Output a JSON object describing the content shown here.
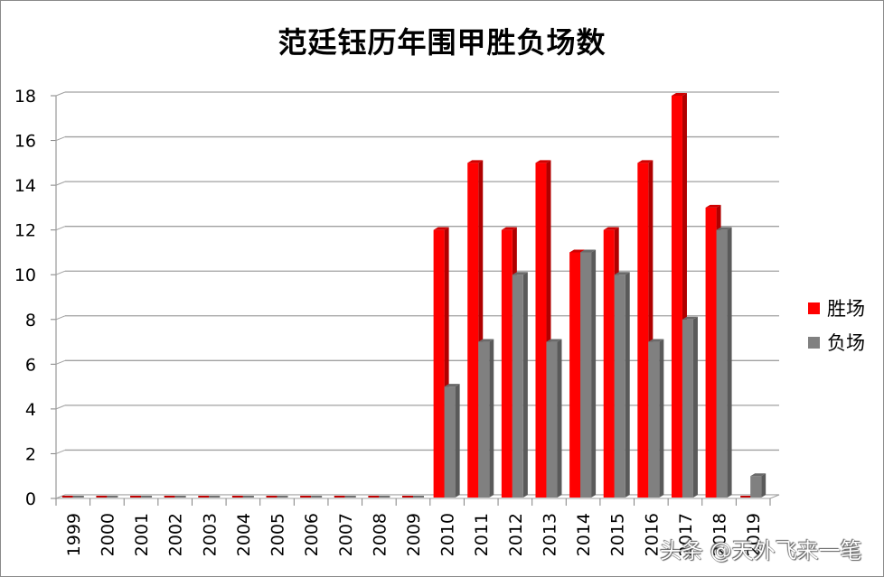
{
  "title": "范廷钰历年围甲胜负场数",
  "legend": [
    {
      "label": "胜场",
      "color": "#ff0000"
    },
    {
      "label": "负场",
      "color": "#808080"
    }
  ],
  "watermark": "头条 @天外飞来一笔",
  "chart_data": {
    "type": "bar",
    "style": "3d-clustered-column",
    "title": "范廷钰历年围甲胜负场数",
    "xlabel": "",
    "ylabel": "",
    "ylim": [
      0,
      18
    ],
    "yticks": [
      0,
      2,
      4,
      6,
      8,
      10,
      12,
      14,
      16,
      18
    ],
    "grid": true,
    "legend_position": "right",
    "categories": [
      "1999",
      "2000",
      "2001",
      "2002",
      "2003",
      "2004",
      "2005",
      "2006",
      "2007",
      "2008",
      "2009",
      "2010",
      "2011",
      "2012",
      "2013",
      "2014",
      "2015",
      "2016",
      "2017",
      "2018",
      "2019"
    ],
    "series": [
      {
        "name": "胜场",
        "color": "#ff0000",
        "values": [
          0,
          0,
          0,
          0,
          0,
          0,
          0,
          0,
          0,
          0,
          0,
          12,
          15,
          12,
          15,
          11,
          12,
          15,
          18,
          13,
          0
        ]
      },
      {
        "name": "负场",
        "color": "#808080",
        "values": [
          0,
          0,
          0,
          0,
          0,
          0,
          0,
          0,
          0,
          0,
          0,
          5,
          7,
          10,
          7,
          11,
          10,
          7,
          8,
          12,
          1
        ]
      }
    ]
  }
}
